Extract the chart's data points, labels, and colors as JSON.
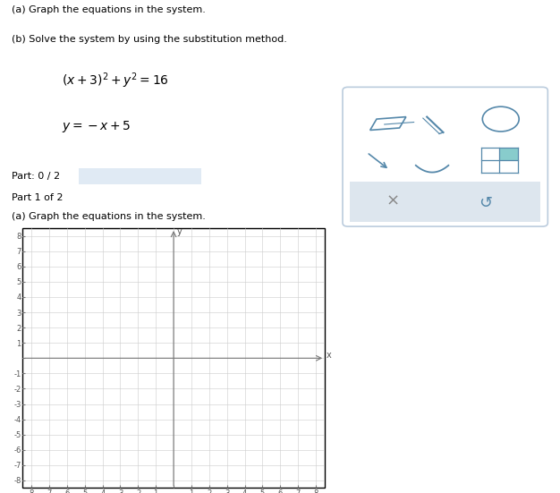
{
  "page_bg": "#ffffff",
  "title_text1": "(a) Graph the equations in the system.",
  "title_text2": "(b) Solve the system by using the substitution method.",
  "eq1": "$(x+3)^2+y^2=16$",
  "eq2": "$y=-x+5$",
  "part_label": "Part: 0 / 2",
  "part1_label": "Part 1 of 2",
  "part1_sub": "(a) Graph the equations in the system.",
  "xlim": [
    -8.5,
    8.5
  ],
  "ylim": [
    -8.5,
    8.5
  ],
  "grid_color": "#cccccc",
  "axis_color": "#777777",
  "tick_color": "#555555",
  "tick_fontsize": 6,
  "graph_bg": "#ffffff",
  "panel_bg_part": "#c8d4de",
  "panel_bg_part1": "#d0dce6",
  "tool_bg": "#ffffff",
  "tool_border": "#bbccdd",
  "tool_color": "#5588aa",
  "tool_bottom_bg": "#dde6ee",
  "progress_bar_color": "#e0eaf4",
  "text_fontsize": 8,
  "eq_fontsize": 10
}
